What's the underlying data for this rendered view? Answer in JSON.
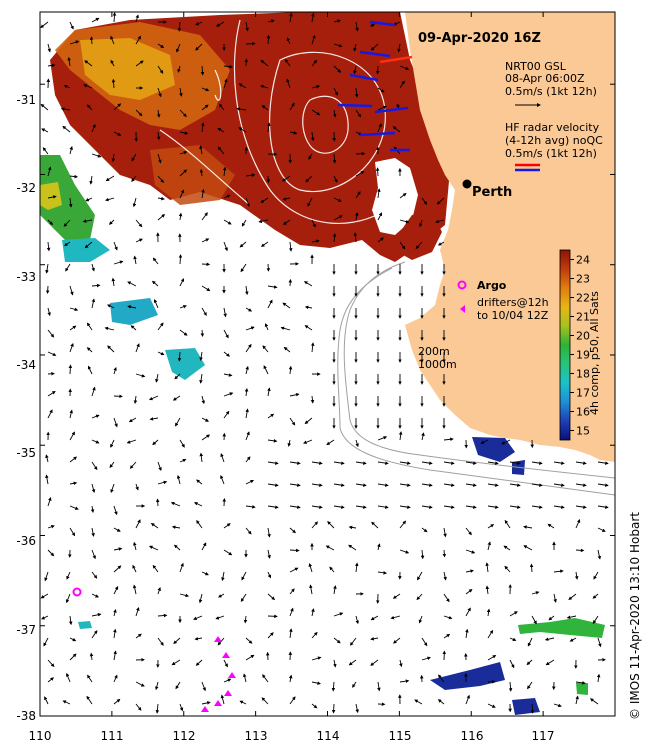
{
  "map": {
    "title": "09-Apr-2020 16Z",
    "model": {
      "name": "NRT00 GSL",
      "time": "08-Apr 06:00Z",
      "scale": "0.5m/s (1kt 12h)"
    },
    "hf_radar": {
      "line1": "HF radar velocity",
      "line2": "(4-12h avg) noQC",
      "scale": "0.5m/s (1kt 12h)"
    },
    "city": "Perth",
    "argo_label": "Argo",
    "drifters_line1": "drifters@12h",
    "drifters_line2": "to 10/04 12Z",
    "isobath_200": "200m",
    "isobath_1000": "1000m",
    "credit": "© IMOS 11-Apr-2020 13:10 Hobart",
    "lat_ticks": [
      "-31",
      "-32",
      "-33",
      "-34",
      "-35",
      "-36",
      "-37",
      "-38"
    ],
    "lon_ticks": [
      "110",
      "111",
      "112",
      "113",
      "114",
      "115",
      "116",
      "117"
    ],
    "extent": {
      "lon_min": 110,
      "lon_max": 118,
      "lat_min": -38,
      "lat_max": -30.2
    },
    "colorbar": {
      "label": "4h comp, p50, All Sats",
      "min": 14.5,
      "max": 24.5,
      "ticks": [
        "24",
        "23",
        "22",
        "21",
        "20",
        "19",
        "18",
        "17",
        "16",
        "15"
      ]
    },
    "colors": {
      "land": "#fbc995",
      "warm_sst": "#a61e0c",
      "hf_arrow_red": "#ff0000",
      "hf_arrow_blue": "#1818e0",
      "argo": "#ff00ff"
    }
  }
}
